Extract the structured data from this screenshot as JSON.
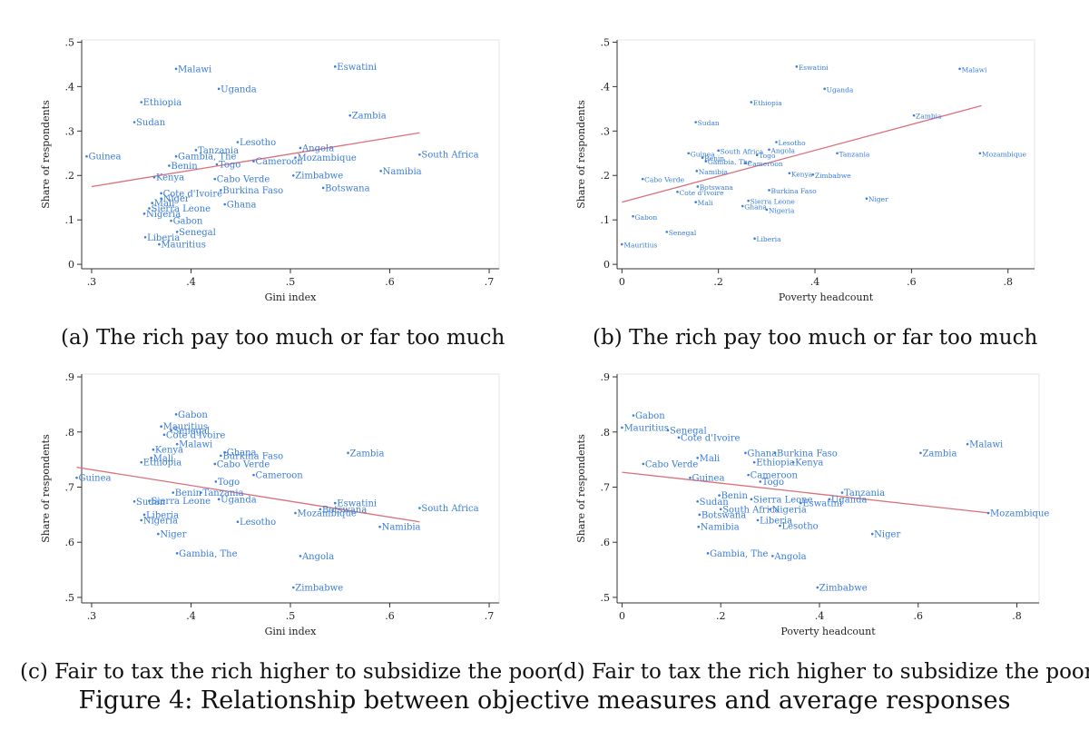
{
  "figure_caption": "Figure 4: Relationship between objective measures and average responses",
  "colors": {
    "point": "#3b7dd8",
    "fit": "#d9707a",
    "axis": "#333333"
  },
  "chart_data": [
    {
      "type": "scatter",
      "caption": "(a) The rich pay too much or far too much",
      "xlabel": "Gini index",
      "ylabel": "Share of respondents",
      "xlim": [
        0.29,
        0.71
      ],
      "ylim": [
        -0.01,
        0.505
      ],
      "xticks": [
        0.3,
        0.4,
        0.5,
        0.6,
        0.7
      ],
      "xtick_labels": [
        ".3",
        ".4",
        ".5",
        ".6",
        ".7"
      ],
      "yticks": [
        0,
        0.1,
        0.2,
        0.3,
        0.4,
        0.5
      ],
      "ytick_labels": [
        "0",
        ".1",
        ".2",
        ".3",
        ".4",
        ".5"
      ],
      "fit_line": {
        "x": [
          0.3,
          0.63
        ],
        "y": [
          0.175,
          0.296
        ]
      },
      "points": [
        {
          "label": "Malawi",
          "x": 0.385,
          "y": 0.44
        },
        {
          "label": "Eswatini",
          "x": 0.545,
          "y": 0.445
        },
        {
          "label": "Uganda",
          "x": 0.428,
          "y": 0.395
        },
        {
          "label": "Ethiopia",
          "x": 0.35,
          "y": 0.365
        },
        {
          "label": "Zambia",
          "x": 0.56,
          "y": 0.335
        },
        {
          "label": "Sudan",
          "x": 0.343,
          "y": 0.32
        },
        {
          "label": "Lesotho",
          "x": 0.447,
          "y": 0.275
        },
        {
          "label": "Angola",
          "x": 0.51,
          "y": 0.262
        },
        {
          "label": "Tanzania",
          "x": 0.405,
          "y": 0.257
        },
        {
          "label": "Guinea",
          "x": 0.295,
          "y": 0.243
        },
        {
          "label": "Gambia, The",
          "x": 0.385,
          "y": 0.243
        },
        {
          "label": "South Africa",
          "x": 0.63,
          "y": 0.247
        },
        {
          "label": "Mozambique",
          "x": 0.505,
          "y": 0.24
        },
        {
          "label": "Cameroon",
          "x": 0.463,
          "y": 0.232
        },
        {
          "label": "Benin",
          "x": 0.378,
          "y": 0.222
        },
        {
          "label": "Togo",
          "x": 0.426,
          "y": 0.225
        },
        {
          "label": "Namibia",
          "x": 0.591,
          "y": 0.21
        },
        {
          "label": "Zimbabwe",
          "x": 0.503,
          "y": 0.2
        },
        {
          "label": "Kenya",
          "x": 0.363,
          "y": 0.196
        },
        {
          "label": "Cabo Verde",
          "x": 0.424,
          "y": 0.192
        },
        {
          "label": "Botswana",
          "x": 0.533,
          "y": 0.172
        },
        {
          "label": "Burkina Faso",
          "x": 0.43,
          "y": 0.167
        },
        {
          "label": "Cote d'Ivoire",
          "x": 0.37,
          "y": 0.16
        },
        {
          "label": "Niger",
          "x": 0.37,
          "y": 0.148
        },
        {
          "label": "Mali",
          "x": 0.361,
          "y": 0.138
        },
        {
          "label": "Ghana",
          "x": 0.434,
          "y": 0.135
        },
        {
          "label": "Sierra Leone",
          "x": 0.358,
          "y": 0.126
        },
        {
          "label": "Nigeria",
          "x": 0.353,
          "y": 0.114
        },
        {
          "label": "Gabon",
          "x": 0.38,
          "y": 0.098
        },
        {
          "label": "Senegal",
          "x": 0.386,
          "y": 0.073
        },
        {
          "label": "Liberia",
          "x": 0.354,
          "y": 0.061
        },
        {
          "label": "Mauritius",
          "x": 0.368,
          "y": 0.045
        }
      ]
    },
    {
      "type": "scatter",
      "caption": "(b) The rich pay too much or far too much",
      "xlabel": "Poverty headcount",
      "ylabel": "Share of respondents",
      "xlim": [
        -0.01,
        0.855
      ],
      "ylim": [
        -0.01,
        0.505
      ],
      "xticks": [
        0,
        0.2,
        0.4,
        0.6,
        0.8
      ],
      "xtick_labels": [
        "0",
        ".2",
        ".4",
        ".6",
        ".8"
      ],
      "yticks": [
        0,
        0.1,
        0.2,
        0.3,
        0.4,
        0.5
      ],
      "ytick_labels": [
        "0",
        ".1",
        ".2",
        ".3",
        ".4",
        ".5"
      ],
      "fit_line": {
        "x": [
          0,
          0.745
        ],
        "y": [
          0.14,
          0.357
        ]
      },
      "points": [
        {
          "label": "Eswatini",
          "x": 0.362,
          "y": 0.445
        },
        {
          "label": "Malawi",
          "x": 0.7,
          "y": 0.44
        },
        {
          "label": "Uganda",
          "x": 0.42,
          "y": 0.395
        },
        {
          "label": "Ethiopia",
          "x": 0.268,
          "y": 0.365
        },
        {
          "label": "Zambia",
          "x": 0.605,
          "y": 0.335
        },
        {
          "label": "Sudan",
          "x": 0.153,
          "y": 0.32
        },
        {
          "label": "Lesotho",
          "x": 0.32,
          "y": 0.275
        },
        {
          "label": "Angola",
          "x": 0.305,
          "y": 0.258
        },
        {
          "label": "Guinea",
          "x": 0.138,
          "y": 0.25
        },
        {
          "label": "South Africa",
          "x": 0.2,
          "y": 0.256
        },
        {
          "label": "Tanzania",
          "x": 0.446,
          "y": 0.25
        },
        {
          "label": "Mozambique",
          "x": 0.742,
          "y": 0.25
        },
        {
          "label": "Togo",
          "x": 0.28,
          "y": 0.246
        },
        {
          "label": "Benin",
          "x": 0.167,
          "y": 0.24
        },
        {
          "label": "Gambia, The",
          "x": 0.174,
          "y": 0.232
        },
        {
          "label": "Cameroon",
          "x": 0.256,
          "y": 0.228
        },
        {
          "label": "Namibia",
          "x": 0.155,
          "y": 0.21
        },
        {
          "label": "Kenya",
          "x": 0.347,
          "y": 0.205
        },
        {
          "label": "Zimbabwe",
          "x": 0.396,
          "y": 0.202
        },
        {
          "label": "Cabo Verde",
          "x": 0.043,
          "y": 0.192
        },
        {
          "label": "Botswana",
          "x": 0.157,
          "y": 0.175
        },
        {
          "label": "Burkina Faso",
          "x": 0.305,
          "y": 0.167
        },
        {
          "label": "Cote d'Ivoire",
          "x": 0.115,
          "y": 0.163
        },
        {
          "label": "Niger",
          "x": 0.507,
          "y": 0.148
        },
        {
          "label": "Sierra Leone",
          "x": 0.262,
          "y": 0.143
        },
        {
          "label": "Mali",
          "x": 0.153,
          "y": 0.14
        },
        {
          "label": "Ghana",
          "x": 0.25,
          "y": 0.131
        },
        {
          "label": "Nigeria",
          "x": 0.3,
          "y": 0.123
        },
        {
          "label": "Gabon",
          "x": 0.023,
          "y": 0.108
        },
        {
          "label": "Senegal",
          "x": 0.093,
          "y": 0.073
        },
        {
          "label": "Liberia",
          "x": 0.275,
          "y": 0.058
        },
        {
          "label": "Mauritius",
          "x": 0.0,
          "y": 0.045
        }
      ]
    },
    {
      "type": "scatter",
      "caption": "(c) Fair to tax the rich higher to subsidize the poor",
      "xlabel": "Gini index",
      "ylabel": "Share of respondents",
      "xlim": [
        0.29,
        0.71
      ],
      "ylim": [
        0.49,
        0.905
      ],
      "xticks": [
        0.3,
        0.4,
        0.5,
        0.6,
        0.7
      ],
      "xtick_labels": [
        ".3",
        ".4",
        ".5",
        ".6",
        ".7"
      ],
      "yticks": [
        0.5,
        0.6,
        0.7,
        0.8,
        0.9
      ],
      "ytick_labels": [
        ".5",
        ".6",
        ".7",
        ".8",
        ".9"
      ],
      "fit_line": {
        "x": [
          0.285,
          0.63
        ],
        "y": [
          0.736,
          0.637
        ]
      },
      "points": [
        {
          "label": "Gabon",
          "x": 0.385,
          "y": 0.832
        },
        {
          "label": "Mauritius",
          "x": 0.37,
          "y": 0.81
        },
        {
          "label": "Senegal",
          "x": 0.38,
          "y": 0.803
        },
        {
          "label": "Cote d'Ivoire",
          "x": 0.373,
          "y": 0.795
        },
        {
          "label": "Malawi",
          "x": 0.386,
          "y": 0.778
        },
        {
          "label": "Kenya",
          "x": 0.362,
          "y": 0.768
        },
        {
          "label": "Ghana",
          "x": 0.434,
          "y": 0.763
        },
        {
          "label": "Zambia",
          "x": 0.558,
          "y": 0.762
        },
        {
          "label": "Burkina Faso",
          "x": 0.43,
          "y": 0.757
        },
        {
          "label": "Mali",
          "x": 0.36,
          "y": 0.753
        },
        {
          "label": "Ethiopia",
          "x": 0.35,
          "y": 0.745
        },
        {
          "label": "Cabo Verde",
          "x": 0.424,
          "y": 0.742
        },
        {
          "label": "Cameroon",
          "x": 0.463,
          "y": 0.722
        },
        {
          "label": "Guinea",
          "x": 0.285,
          "y": 0.717
        },
        {
          "label": "Togo",
          "x": 0.425,
          "y": 0.71
        },
        {
          "label": "Benin",
          "x": 0.382,
          "y": 0.69
        },
        {
          "label": "Tanzania",
          "x": 0.41,
          "y": 0.69
        },
        {
          "label": "Uganda",
          "x": 0.428,
          "y": 0.678
        },
        {
          "label": "Sudan",
          "x": 0.343,
          "y": 0.674
        },
        {
          "label": "Sierra Leone",
          "x": 0.358,
          "y": 0.675
        },
        {
          "label": "Eswatini",
          "x": 0.545,
          "y": 0.671
        },
        {
          "label": "South Africa",
          "x": 0.63,
          "y": 0.662
        },
        {
          "label": "Botswana",
          "x": 0.53,
          "y": 0.66
        },
        {
          "label": "Mozambique",
          "x": 0.505,
          "y": 0.653
        },
        {
          "label": "Liberia",
          "x": 0.353,
          "y": 0.65
        },
        {
          "label": "Lesotho",
          "x": 0.447,
          "y": 0.637
        },
        {
          "label": "Nigeria",
          "x": 0.35,
          "y": 0.64
        },
        {
          "label": "Namibia",
          "x": 0.59,
          "y": 0.628
        },
        {
          "label": "Niger",
          "x": 0.367,
          "y": 0.615
        },
        {
          "label": "Gambia, The",
          "x": 0.386,
          "y": 0.58
        },
        {
          "label": "Angola",
          "x": 0.51,
          "y": 0.575
        },
        {
          "label": "Zimbabwe",
          "x": 0.503,
          "y": 0.518
        }
      ]
    },
    {
      "type": "scatter",
      "caption": "(d) Fair to tax the rich higher to subsidize the poor",
      "xlabel": "Poverty headcount",
      "ylabel": "Share of respondents",
      "xlim": [
        -0.01,
        0.845
      ],
      "ylim": [
        0.49,
        0.905
      ],
      "xticks": [
        0,
        0.2,
        0.4,
        0.6,
        0.8
      ],
      "xtick_labels": [
        "0",
        ".2",
        ".4",
        ".6",
        ".8"
      ],
      "yticks": [
        0.5,
        0.6,
        0.7,
        0.8,
        0.9
      ],
      "ytick_labels": [
        ".5",
        ".6",
        ".7",
        ".8",
        ".9"
      ],
      "fit_line": {
        "x": [
          0,
          0.745
        ],
        "y": [
          0.727,
          0.653
        ]
      },
      "points": [
        {
          "label": "Gabon",
          "x": 0.023,
          "y": 0.83
        },
        {
          "label": "Mauritius",
          "x": 0.0,
          "y": 0.808
        },
        {
          "label": "Senegal",
          "x": 0.093,
          "y": 0.803
        },
        {
          "label": "Cote d'Ivoire",
          "x": 0.115,
          "y": 0.79
        },
        {
          "label": "Malawi",
          "x": 0.7,
          "y": 0.778
        },
        {
          "label": "Zambia",
          "x": 0.605,
          "y": 0.762
        },
        {
          "label": "Ghana",
          "x": 0.25,
          "y": 0.762
        },
        {
          "label": "Burkina Faso",
          "x": 0.31,
          "y": 0.762
        },
        {
          "label": "Mali",
          "x": 0.153,
          "y": 0.753
        },
        {
          "label": "Ethiopia",
          "x": 0.268,
          "y": 0.745
        },
        {
          "label": "Kenya",
          "x": 0.347,
          "y": 0.745
        },
        {
          "label": "Cabo Verde",
          "x": 0.043,
          "y": 0.742
        },
        {
          "label": "Cameroon",
          "x": 0.256,
          "y": 0.722
        },
        {
          "label": "Guinea",
          "x": 0.138,
          "y": 0.717
        },
        {
          "label": "Togo",
          "x": 0.28,
          "y": 0.71
        },
        {
          "label": "Tanzania",
          "x": 0.446,
          "y": 0.69
        },
        {
          "label": "Benin",
          "x": 0.197,
          "y": 0.685
        },
        {
          "label": "Uganda",
          "x": 0.42,
          "y": 0.678
        },
        {
          "label": "Sierra Leone",
          "x": 0.262,
          "y": 0.678
        },
        {
          "label": "Sudan",
          "x": 0.153,
          "y": 0.674
        },
        {
          "label": "Eswatini",
          "x": 0.362,
          "y": 0.671
        },
        {
          "label": "South Africa",
          "x": 0.2,
          "y": 0.66
        },
        {
          "label": "Nigeria",
          "x": 0.3,
          "y": 0.66
        },
        {
          "label": "Mozambique",
          "x": 0.742,
          "y": 0.653
        },
        {
          "label": "Botswana",
          "x": 0.157,
          "y": 0.65
        },
        {
          "label": "Liberia",
          "x": 0.275,
          "y": 0.64
        },
        {
          "label": "Lesotho",
          "x": 0.32,
          "y": 0.63
        },
        {
          "label": "Namibia",
          "x": 0.155,
          "y": 0.628
        },
        {
          "label": "Niger",
          "x": 0.507,
          "y": 0.615
        },
        {
          "label": "Gambia, The",
          "x": 0.174,
          "y": 0.58
        },
        {
          "label": "Angola",
          "x": 0.305,
          "y": 0.575
        },
        {
          "label": "Zimbabwe",
          "x": 0.396,
          "y": 0.518
        }
      ]
    }
  ]
}
